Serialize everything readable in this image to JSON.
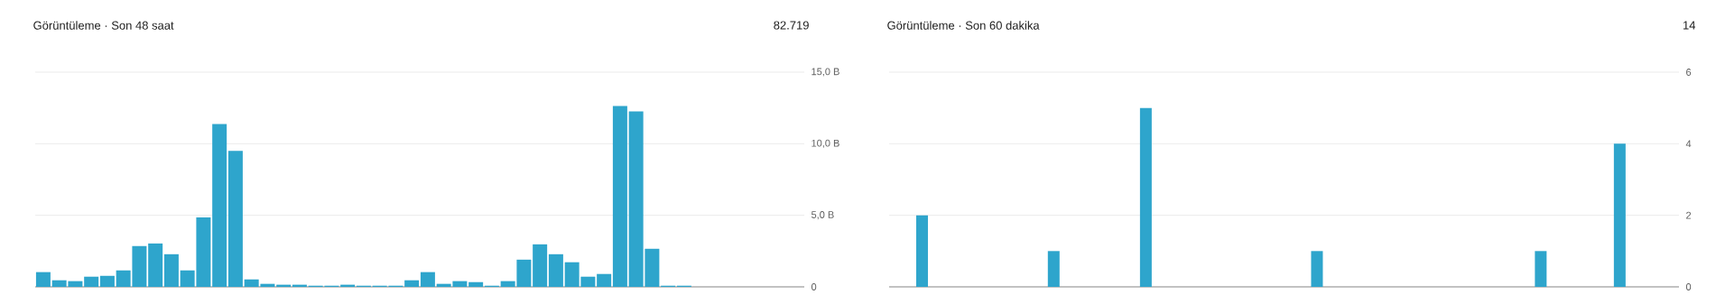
{
  "chart_data": [
    {
      "type": "bar",
      "title": "Görüntüleme · Son 48 saat",
      "subtitle": "82.719",
      "categories": [
        null,
        null,
        null,
        null,
        null,
        null,
        null,
        null,
        null,
        null,
        null,
        null,
        null,
        null,
        null,
        null,
        null,
        null,
        null,
        null,
        null,
        null,
        null,
        null,
        null,
        null,
        null,
        null,
        null,
        null,
        null,
        null,
        null,
        null,
        null,
        null,
        null,
        null,
        null,
        null,
        null,
        null,
        null,
        null,
        null,
        null,
        null,
        null
      ],
      "values": [
        1.03,
        0.46,
        0.4,
        0.71,
        0.77,
        1.15,
        2.85,
        3.03,
        2.28,
        1.15,
        4.85,
        11.38,
        9.5,
        0.52,
        0.21,
        0.15,
        0.15,
        0.08,
        0.08,
        0.15,
        0.08,
        0.08,
        0.08,
        0.46,
        1.03,
        0.21,
        0.4,
        0.33,
        0.08,
        0.4,
        1.9,
        2.97,
        2.28,
        1.72,
        0.71,
        0.9,
        12.64,
        12.26,
        2.66,
        0.08,
        0.08,
        0,
        0,
        0,
        0,
        0,
        0,
        0
      ],
      "color": "#2ea5cc",
      "ylim": [
        0,
        15
      ],
      "yticks": [
        0,
        {
          "value": 5,
          "label": "5,0 B"
        },
        {
          "value": 10,
          "label": "10,0 B"
        },
        {
          "value": 15,
          "label": "15,0 B"
        }
      ],
      "grid": "y",
      "tick_labels": "y"
    },
    {
      "type": "bar",
      "title": "Görüntüleme · Son 60 dakika",
      "subtitle": "14",
      "categories": [
        null,
        null,
        null,
        null,
        null,
        null,
        null,
        null,
        null,
        null,
        null,
        null,
        null,
        null,
        null,
        null,
        null,
        null,
        null,
        null,
        null,
        null,
        null,
        null,
        null,
        null,
        null,
        null,
        null,
        null,
        null,
        null,
        null,
        null,
        null,
        null,
        null,
        null,
        null,
        null,
        null,
        null,
        null,
        null,
        null,
        null,
        null,
        null,
        null,
        null,
        null,
        null,
        null,
        null,
        null,
        null,
        null,
        null,
        null,
        null
      ],
      "values": [
        0,
        0,
        2,
        0,
        0,
        0,
        0,
        0,
        0,
        0,
        0,
        0,
        1,
        0,
        0,
        0,
        0,
        0,
        0,
        5,
        0,
        0,
        0,
        0,
        0,
        0,
        0,
        0,
        0,
        0,
        0,
        0,
        1,
        0,
        0,
        0,
        0,
        0,
        0,
        0,
        0,
        0,
        0,
        0,
        0,
        0,
        0,
        0,
        0,
        1,
        0,
        0,
        0,
        0,
        0,
        4,
        0,
        0,
        0,
        0
      ],
      "color": "#2ea5cc",
      "ylim": [
        0,
        6
      ],
      "yticks": [
        0,
        2,
        4,
        6
      ],
      "grid": "y",
      "tick_labels": "y"
    }
  ]
}
